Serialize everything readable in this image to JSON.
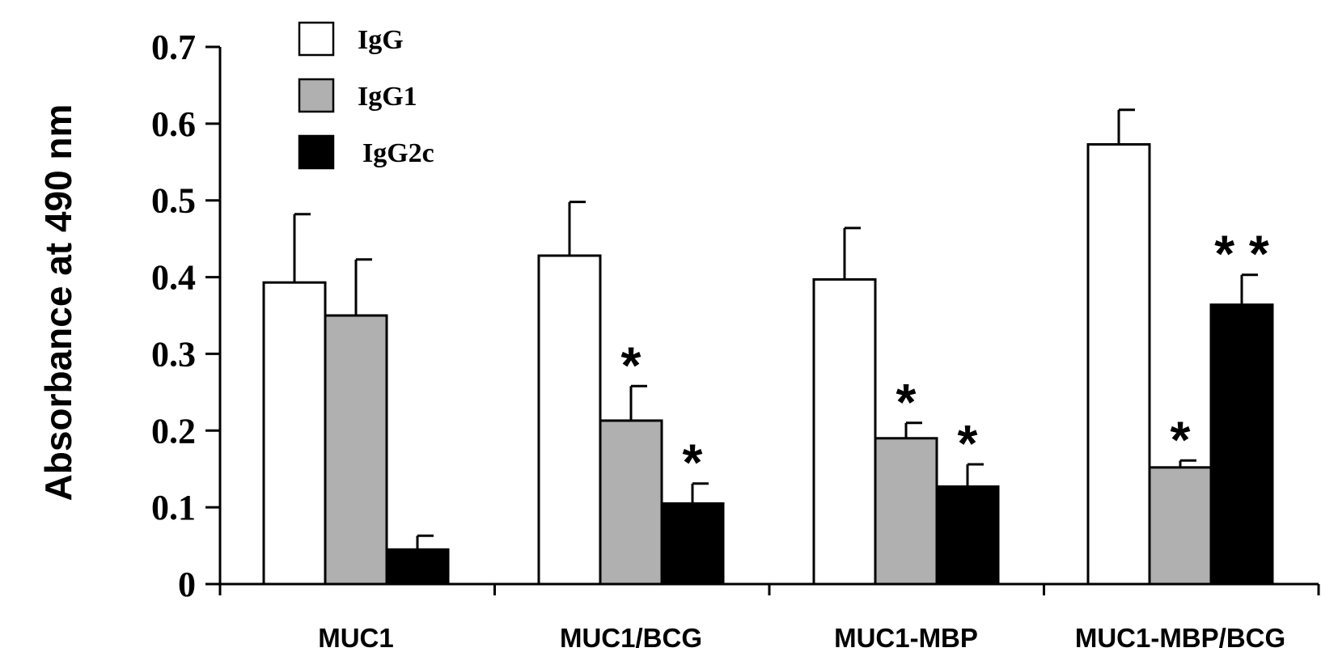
{
  "chart_data": {
    "type": "bar",
    "title": "",
    "ylabel": "Absorbance at 490 nm",
    "xlabel": "",
    "ylim": [
      0,
      0.7
    ],
    "yticks": [
      "0",
      "0.1",
      "0.2",
      "0.3",
      "0.4",
      "0.5",
      "0.6",
      "0.7"
    ],
    "categories": [
      "MUC1",
      "MUC1/BCG",
      "MUC1-MBP",
      "MUC1-MBP/BCG"
    ],
    "legend_position": "top-left",
    "grid": false,
    "series": [
      {
        "name": "IgG",
        "color": "#ffffff",
        "values": [
          0.393,
          0.428,
          0.397,
          0.573
        ],
        "errors": [
          0.089,
          0.07,
          0.067,
          0.045
        ],
        "significance": [
          "",
          "",
          "",
          ""
        ]
      },
      {
        "name": "IgG1",
        "color": "#b0b0b0",
        "values": [
          0.35,
          0.213,
          0.19,
          0.152
        ],
        "errors": [
          0.073,
          0.045,
          0.02,
          0.009
        ],
        "significance": [
          "",
          "*",
          "*",
          "*"
        ]
      },
      {
        "name": "IgG2c",
        "color": "#000000",
        "values": [
          0.045,
          0.105,
          0.127,
          0.364
        ],
        "errors": [
          0.018,
          0.026,
          0.029,
          0.039
        ],
        "significance": [
          "",
          "*",
          "*",
          "* *"
        ]
      }
    ]
  }
}
